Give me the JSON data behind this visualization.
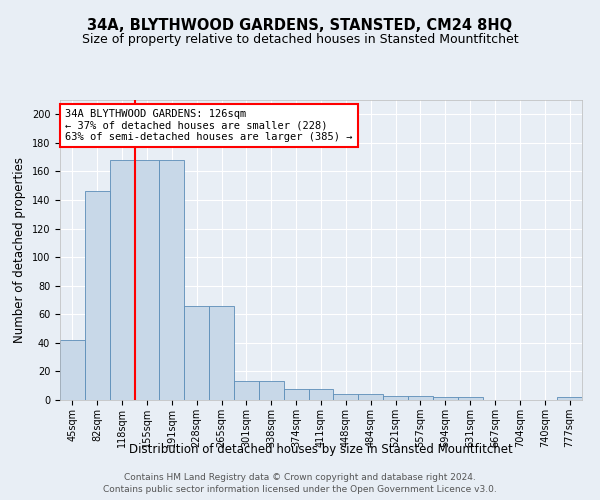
{
  "title": "34A, BLYTHWOOD GARDENS, STANSTED, CM24 8HQ",
  "subtitle": "Size of property relative to detached houses in Stansted Mountfitchet",
  "xlabel": "Distribution of detached houses by size in Stansted Mountfitchet",
  "ylabel": "Number of detached properties",
  "footer1": "Contains HM Land Registry data © Crown copyright and database right 2024.",
  "footer2": "Contains public sector information licensed under the Open Government Licence v3.0.",
  "bin_labels": [
    "45sqm",
    "82sqm",
    "118sqm",
    "155sqm",
    "191sqm",
    "228sqm",
    "265sqm",
    "301sqm",
    "338sqm",
    "374sqm",
    "411sqm",
    "448sqm",
    "484sqm",
    "521sqm",
    "557sqm",
    "594sqm",
    "631sqm",
    "667sqm",
    "704sqm",
    "740sqm",
    "777sqm"
  ],
  "bar_values": [
    42,
    146,
    168,
    168,
    168,
    66,
    66,
    13,
    13,
    8,
    8,
    4,
    4,
    3,
    3,
    2,
    2,
    0,
    0,
    0,
    2
  ],
  "bar_color": "#c8d8e8",
  "bar_edge_color": "#5b8db8",
  "vline_x": 2.5,
  "vline_color": "red",
  "annotation_text": "34A BLYTHWOOD GARDENS: 126sqm\n← 37% of detached houses are smaller (228)\n63% of semi-detached houses are larger (385) →",
  "annotation_box_color": "white",
  "annotation_box_edge": "red",
  "ylim": [
    0,
    210
  ],
  "yticks": [
    0,
    20,
    40,
    60,
    80,
    100,
    120,
    140,
    160,
    180,
    200
  ],
  "background_color": "#e8eef5",
  "grid_color": "#ffffff",
  "title_fontsize": 10.5,
  "subtitle_fontsize": 9,
  "xlabel_fontsize": 8.5,
  "ylabel_fontsize": 8.5,
  "tick_fontsize": 7,
  "footer_fontsize": 6.5,
  "annot_fontsize": 7.5
}
